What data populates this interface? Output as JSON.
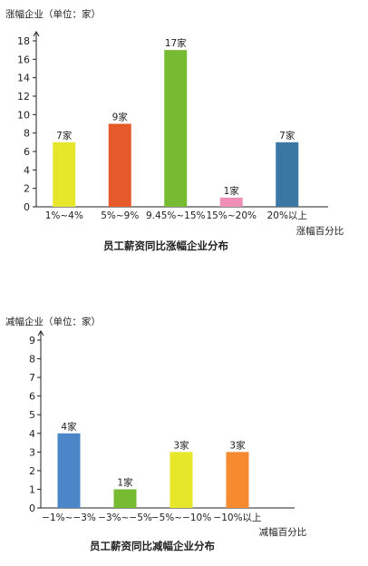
{
  "chart_data": [
    {
      "type": "bar",
      "title": "员工薪资同比涨幅企业分布",
      "ylabel": "涨幅企业（单位：家）",
      "xlabel": "涨幅百分比",
      "ylim": [
        0,
        18
      ],
      "yticks": [
        0,
        2,
        4,
        6,
        8,
        10,
        12,
        14,
        16,
        18
      ],
      "categories": [
        "1%~4%",
        "5%~9%",
        "9.45%~15%",
        "15%~20%",
        "20%以上"
      ],
      "values": [
        7,
        9,
        17,
        1,
        7
      ],
      "data_labels": [
        "7家",
        "9家",
        "17家",
        "1家",
        "7家"
      ],
      "colors": [
        "#e6e62a",
        "#e6592a",
        "#77bb33",
        "#ef8fb7",
        "#3a77a3"
      ]
    },
    {
      "type": "bar",
      "title": "员工薪资同比减幅企业分布",
      "ylabel": "减幅企业（单位：家）",
      "xlabel": "减幅百分比",
      "ylim": [
        0,
        9
      ],
      "yticks": [
        0,
        1,
        2,
        3,
        4,
        5,
        6,
        7,
        8,
        9
      ],
      "categories": [
        "−1%~−3%",
        "−3%~−5%",
        "−5%~−10%",
        "−10%以上"
      ],
      "values": [
        4,
        1,
        3,
        3
      ],
      "data_labels": [
        "4家",
        "1家",
        "3家",
        "3家"
      ],
      "colors": [
        "#4a86c8",
        "#77bb33",
        "#e6e62a",
        "#f58a2e"
      ]
    }
  ]
}
